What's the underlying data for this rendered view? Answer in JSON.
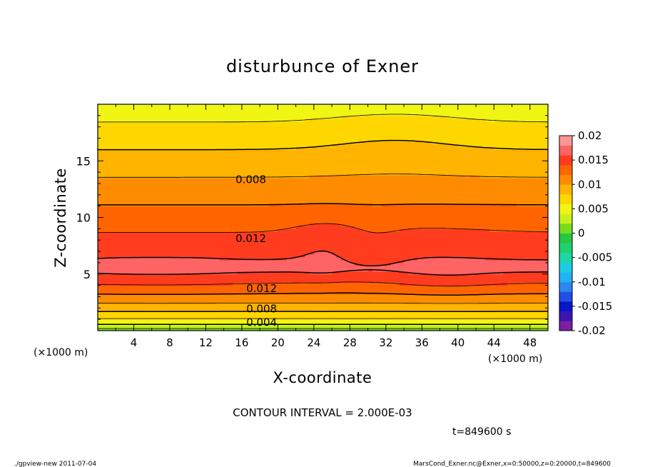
{
  "chart_data": {
    "type": "heatmap",
    "title": "disturbunce of Exner",
    "xlabel": "X-coordinate",
    "ylabel": "Z-coordinate",
    "x_unit_left": "(×1000 m)",
    "x_unit_right": "(×1000 m)",
    "xlim": [
      0,
      50
    ],
    "ylim": [
      0,
      20
    ],
    "xticks": [
      4,
      8,
      12,
      16,
      20,
      24,
      28,
      32,
      36,
      40,
      44,
      48
    ],
    "yticks": [
      5,
      10,
      15
    ],
    "colorbar": {
      "ticks": [
        "0.02",
        "0.015",
        "0.01",
        "0.005",
        "0",
        "-0.005",
        "-0.01",
        "-0.015",
        "-0.02"
      ],
      "min": -0.02,
      "max": 0.02,
      "step": 0.002,
      "colors": [
        "#7a1fa2",
        "#3c14b4",
        "#0a14c8",
        "#1f4fe6",
        "#2d87f0",
        "#21b4f5",
        "#1ecbe1",
        "#1ed7a5",
        "#1ed26e",
        "#26c841",
        "#78dc1e",
        "#c8f01e",
        "#f0f514",
        "#ffd700",
        "#ffb400",
        "#ff8c00",
        "#ff6400",
        "#ff3c1e",
        "#ff6464",
        "#ff9696"
      ]
    },
    "contour_labels": [
      {
        "text": "0.008",
        "x": 17.0,
        "z": 13.4
      },
      {
        "text": "0.012",
        "x": 17.0,
        "z": 8.2
      },
      {
        "text": "0.012",
        "x": 18.2,
        "z": 3.8
      },
      {
        "text": "0.008",
        "x": 18.2,
        "z": 2.0
      },
      {
        "text": "0.004",
        "x": 18.2,
        "z": 0.8
      }
    ],
    "contour_interval": "CONTOUR INTERVAL = 2.000E-03",
    "time": "t=849600 s"
  },
  "footer": {
    "left": "./gpview-new  2011-07-04",
    "right": "MarsCond_Exner.nc@Exner,x=0:50000,z=0:20000,t=849600"
  }
}
